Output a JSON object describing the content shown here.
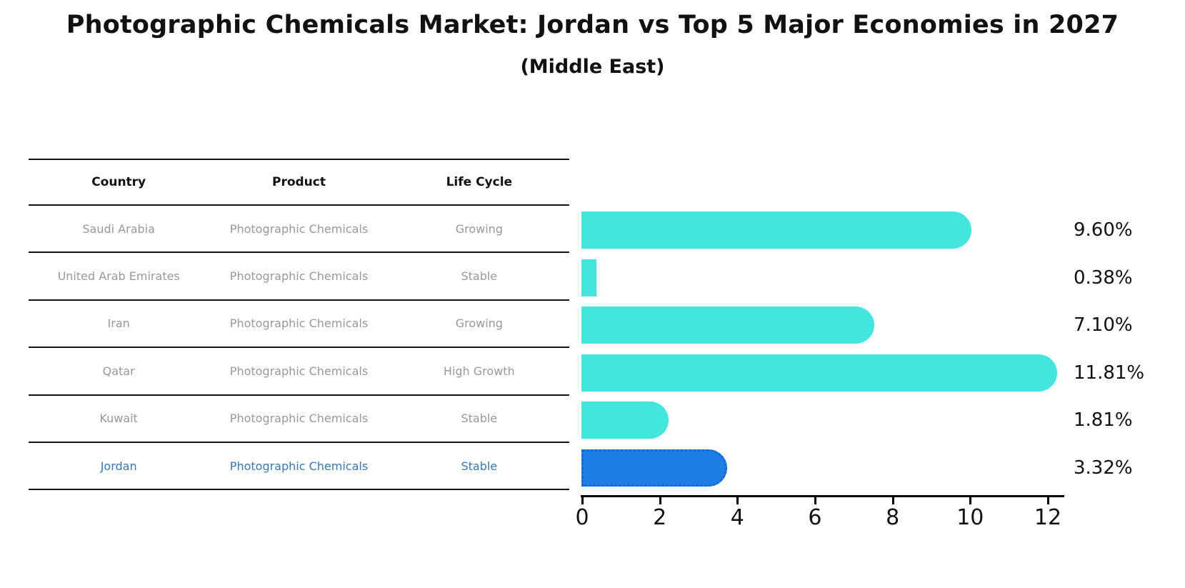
{
  "title": "Photographic Chemicals Market: Jordan vs Top 5 Major Economies in 2027",
  "subtitle": "(Middle East)",
  "table": {
    "headers": {
      "country": "Country",
      "product": "Product",
      "life_cycle": "Life Cycle"
    },
    "rows": [
      {
        "country": "Saudi Arabia",
        "product": "Photographic Chemicals",
        "life_cycle": "Growing"
      },
      {
        "country": "United Arab Emirates",
        "product": "Photographic Chemicals",
        "life_cycle": "Stable"
      },
      {
        "country": "Iran",
        "product": "Photographic Chemicals",
        "life_cycle": "Growing"
      },
      {
        "country": "Qatar",
        "product": "Photographic Chemicals",
        "life_cycle": "High Growth"
      },
      {
        "country": "Kuwait",
        "product": "Photographic Chemicals",
        "life_cycle": "Stable"
      },
      {
        "country": "Jordan",
        "product": "Photographic Chemicals",
        "life_cycle": "Stable"
      }
    ],
    "highlight_row": "Jordan"
  },
  "chart_data": {
    "type": "bar",
    "orientation": "horizontal",
    "title": "Photographic Chemicals Market: Jordan vs Top 5 Major Economies in 2027",
    "subtitle": "(Middle East)",
    "categories": [
      "Saudi Arabia",
      "United Arab Emirates",
      "Iran",
      "Qatar",
      "Kuwait",
      "Jordan"
    ],
    "values": [
      9.6,
      0.38,
      7.1,
      11.81,
      1.81,
      3.32
    ],
    "value_labels": [
      "9.60%",
      "0.38%",
      "7.10%",
      "11.81%",
      "1.81%",
      "3.32%"
    ],
    "x_ticks": [
      0,
      2,
      4,
      6,
      8,
      10,
      12
    ],
    "xlim": [
      0,
      12.4
    ],
    "grid": false,
    "legend": false,
    "bar_color": "#43E6DF",
    "highlight_bar_color": "#1E7EE8",
    "highlight_border_color": "#1668CE",
    "highlight_index": 5
  },
  "colors": {
    "bar_cyan": "#43E6DF",
    "bar_blue": "#1E7EE8",
    "highlight_text_blue": "#3579BE",
    "table_text_gray": "#999999",
    "line_black": "#151515",
    "axis_black": "#000000",
    "background": "#FFFFFF"
  }
}
